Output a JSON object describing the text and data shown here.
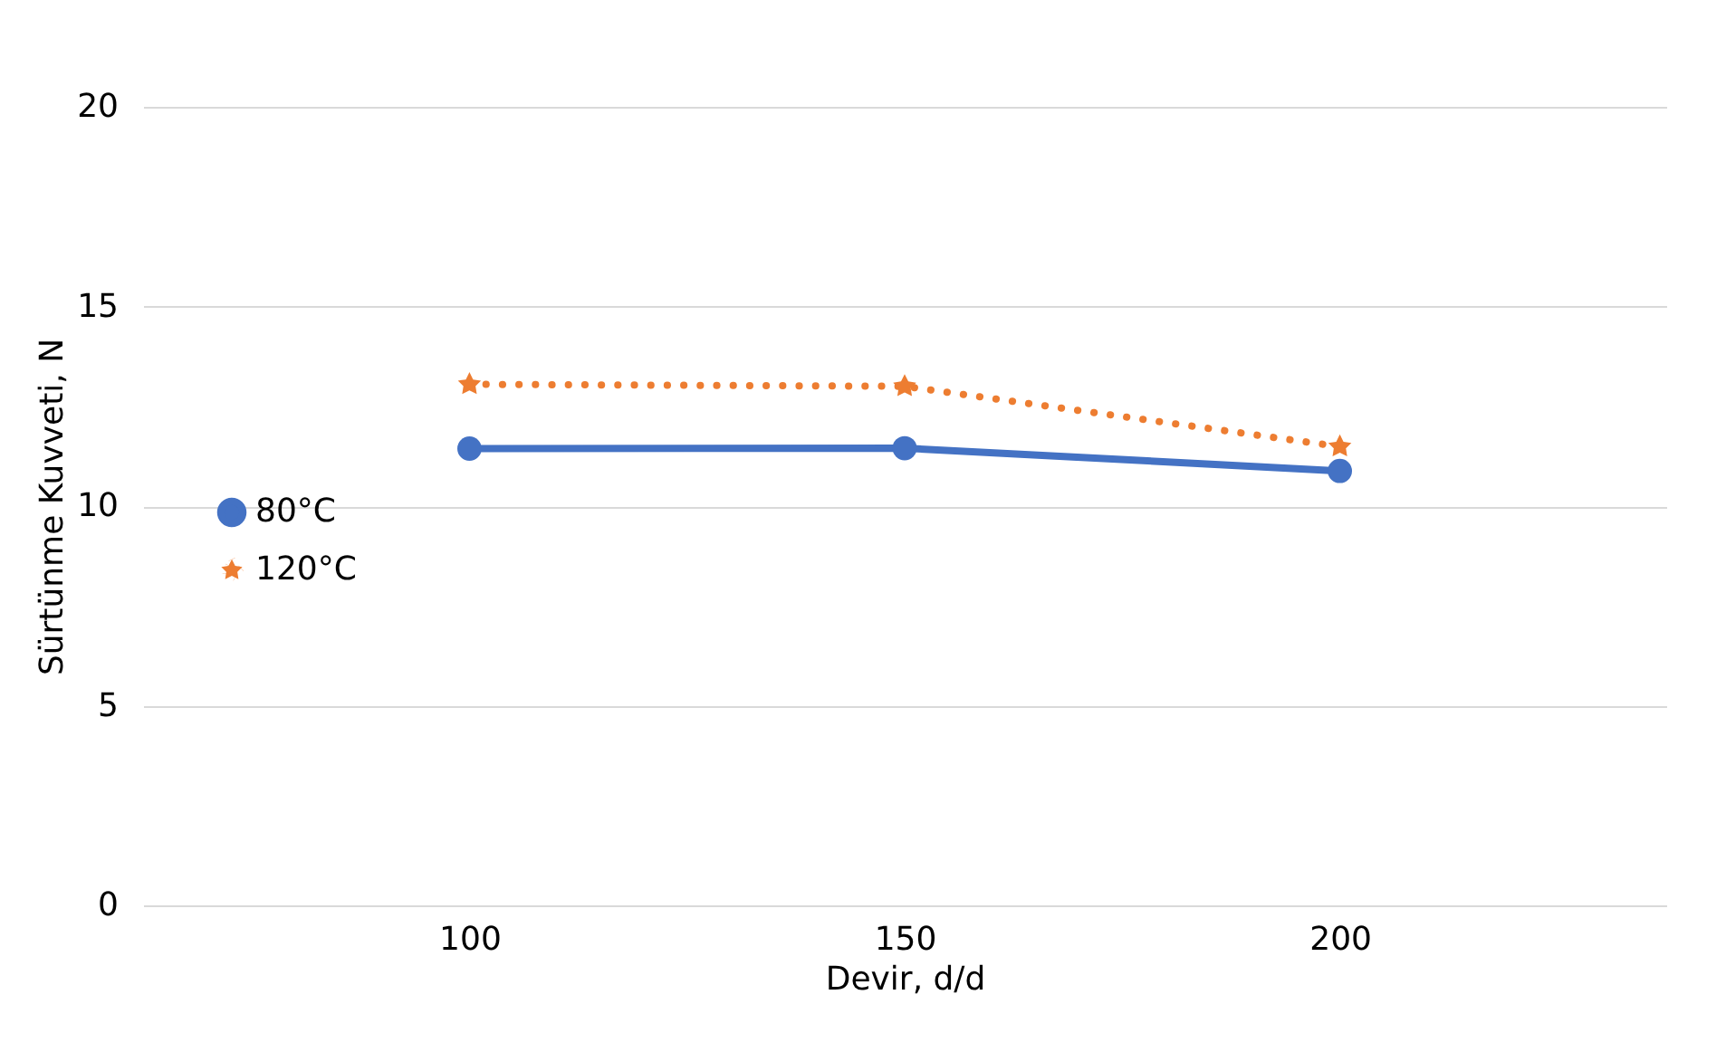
{
  "chart_data": {
    "type": "line",
    "xlabel": "Devir, d/d",
    "ylabel": "Sürtünme Kuvveti, N",
    "categories": [
      "100",
      "150",
      "200"
    ],
    "series": [
      {
        "name": "80°C",
        "color": "#4472c4",
        "values": [
          11.44,
          11.45,
          10.88
        ],
        "marker": "circle",
        "line_style": "solid"
      },
      {
        "name": "120°C",
        "color": "#ed7d31",
        "values": [
          13.05,
          13.0,
          11.49
        ],
        "marker": "star",
        "line_style": "dotted"
      }
    ],
    "ylim": [
      0,
      20
    ],
    "yticks": [
      0,
      5,
      10,
      15,
      20
    ],
    "grid": "y",
    "legend": "left"
  }
}
